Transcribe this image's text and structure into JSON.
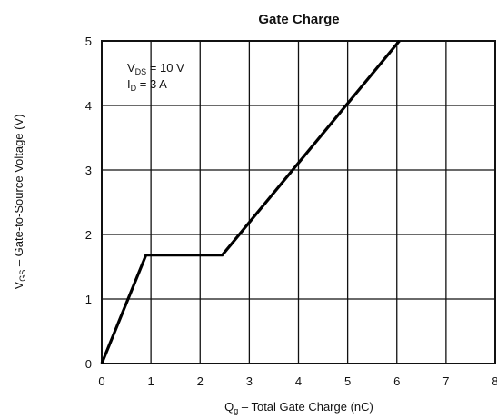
{
  "chart_data": {
    "type": "line",
    "title": "Gate Charge",
    "xlabel": {
      "main": "Q",
      "sub": "g",
      "rest": "  –  Total Gate Charge (nC)"
    },
    "ylabel": {
      "main": "V",
      "sub": "GS",
      "rest": "  –  Gate-to-Source Voltage (V)"
    },
    "xlim": [
      0,
      8
    ],
    "ylim": [
      0,
      5
    ],
    "x_ticks": [
      "0",
      "1",
      "2",
      "3",
      "4",
      "5",
      "6",
      "7",
      "8"
    ],
    "y_ticks": [
      "0",
      "1",
      "2",
      "3",
      "4",
      "5"
    ],
    "grid": true,
    "annotations": [
      {
        "main": "V",
        "sub": "DS",
        "rest": " = 10 V"
      },
      {
        "main": "I",
        "sub": "D",
        "rest": " = 3 A"
      }
    ],
    "series": [
      {
        "x": [
          0,
          0.9,
          2.45,
          6.05
        ],
        "y": [
          0,
          1.68,
          1.68,
          5
        ]
      }
    ]
  }
}
